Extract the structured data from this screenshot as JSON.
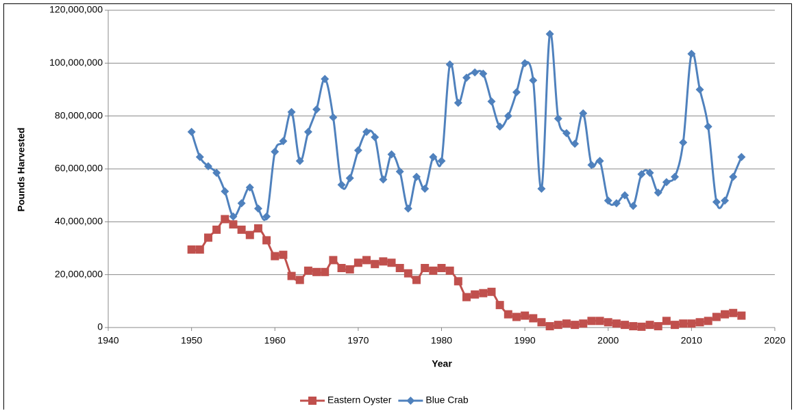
{
  "chart_data": {
    "type": "line",
    "x_label": "Year",
    "y_label": "Pounds Harvested",
    "x": [
      1950,
      1951,
      1952,
      1953,
      1954,
      1955,
      1956,
      1957,
      1958,
      1959,
      1960,
      1961,
      1962,
      1963,
      1964,
      1965,
      1966,
      1967,
      1968,
      1969,
      1970,
      1971,
      1972,
      1973,
      1974,
      1975,
      1976,
      1977,
      1978,
      1979,
      1980,
      1981,
      1982,
      1983,
      1984,
      1985,
      1986,
      1987,
      1988,
      1989,
      1990,
      1991,
      1992,
      1993,
      1994,
      1995,
      1996,
      1997,
      1998,
      1999,
      2000,
      2001,
      2002,
      2003,
      2004,
      2005,
      2006,
      2007,
      2008,
      2009,
      2010,
      2011,
      2012,
      2013,
      2014,
      2015,
      2016
    ],
    "series": [
      {
        "name": "Eastern Oyster",
        "color": "#c0504d",
        "marker": "square",
        "values": [
          29500000,
          29500000,
          34000000,
          37000000,
          41000000,
          39000000,
          37000000,
          35000000,
          37500000,
          33000000,
          27000000,
          27500000,
          19500000,
          18000000,
          21500000,
          21000000,
          21000000,
          25500000,
          22500000,
          22000000,
          24500000,
          25500000,
          24000000,
          25000000,
          24500000,
          22500000,
          20500000,
          18000000,
          22500000,
          21500000,
          22500000,
          21500000,
          17500000,
          11500000,
          12500000,
          13000000,
          13500000,
          8500000,
          5000000,
          4000000,
          4500000,
          3500000,
          2000000,
          500000,
          1000000,
          1500000,
          1000000,
          1500000,
          2500000,
          2500000,
          2000000,
          1500000,
          1000000,
          500000,
          300000,
          1000000,
          500000,
          2500000,
          1000000,
          1500000,
          1500000,
          2000000,
          2500000,
          4000000,
          5000000,
          5500000,
          4500000
        ]
      },
      {
        "name": "Blue Crab",
        "color": "#4f81bd",
        "marker": "diamond",
        "values": [
          74000000,
          64500000,
          61000000,
          58500000,
          51500000,
          42000000,
          47000000,
          53000000,
          45000000,
          42000000,
          66500000,
          70500000,
          81500000,
          63000000,
          74000000,
          82500000,
          94000000,
          79500000,
          54000000,
          56500000,
          67000000,
          74000000,
          72000000,
          56000000,
          65500000,
          59000000,
          45000000,
          57000000,
          52500000,
          64500000,
          63000000,
          99500000,
          85000000,
          94500000,
          96500000,
          96000000,
          85500000,
          76000000,
          80000000,
          89000000,
          100000000,
          93500000,
          52500000,
          111000000,
          79000000,
          73500000,
          69500000,
          81000000,
          61500000,
          63000000,
          48000000,
          47000000,
          50000000,
          46000000,
          58000000,
          58500000,
          51000000,
          55000000,
          57000000,
          70000000,
          103500000,
          90000000,
          76000000,
          47500000,
          48000000,
          57000000,
          64500000
        ]
      }
    ],
    "xlim": [
      1940,
      2020
    ],
    "xticks": [
      1940,
      1950,
      1960,
      1970,
      1980,
      1990,
      2000,
      2010,
      2020
    ],
    "ylim": [
      0,
      120000000
    ],
    "yticks": [
      0,
      {
        "value": 20000000,
        "label": "20,000,000"
      },
      {
        "value": 40000000,
        "label": "40,000,000"
      },
      {
        "value": 60000000,
        "label": "60,000,000"
      },
      {
        "value": 80000000,
        "label": "80,000,000"
      },
      {
        "value": 100000000,
        "label": "100,000,000"
      },
      {
        "value": 120000000,
        "label": "120,000,000"
      }
    ],
    "grid": true,
    "legend": "bottom"
  }
}
